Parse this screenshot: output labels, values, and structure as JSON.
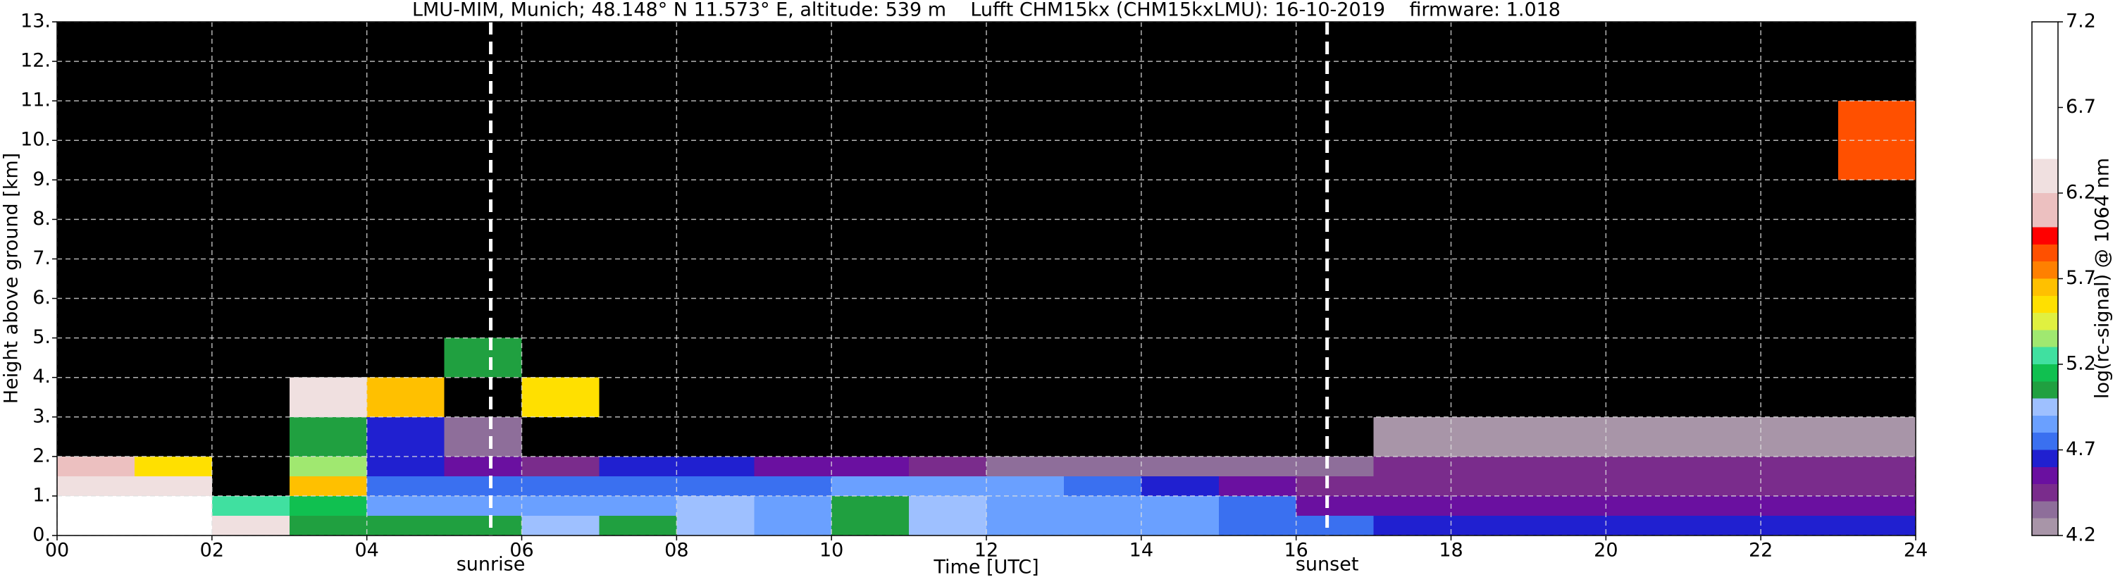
{
  "chart_data": {
    "type": "heatmap",
    "title": "LMU-MIM, Munich; 48.148° N 11.573° E, altitude: 539 m    Lufft CHM15kx (CHM15kxLMU): 16-10-2019    firmware: 1.018",
    "xlabel": "Time [UTC]",
    "ylabel": "Height above ground [km]",
    "xlim": [
      0,
      24
    ],
    "ylim": [
      0,
      13
    ],
    "xticks": [
      {
        "value": 0,
        "label": "00"
      },
      {
        "value": 2,
        "label": "02"
      },
      {
        "value": 4,
        "label": "04"
      },
      {
        "value": 6,
        "label": "06"
      },
      {
        "value": 8,
        "label": "08"
      },
      10,
      12,
      14,
      16,
      18,
      20,
      22,
      24
    ],
    "yticks": [
      {
        "value": 0,
        "label": "0."
      },
      {
        "value": 1,
        "label": "1."
      },
      {
        "value": 2,
        "label": "2."
      },
      {
        "value": 3,
        "label": "3."
      },
      {
        "value": 4,
        "label": "4."
      },
      {
        "value": 5,
        "label": "5."
      },
      {
        "value": 6,
        "label": "6."
      },
      {
        "value": 7,
        "label": "7."
      },
      {
        "value": 8,
        "label": "8."
      },
      {
        "value": 9,
        "label": "9."
      },
      {
        "value": 10,
        "label": "10."
      },
      {
        "value": 11,
        "label": "11."
      },
      {
        "value": 12,
        "label": "12."
      },
      {
        "value": 13,
        "label": "13."
      }
    ],
    "grid": true,
    "x_edges": [
      0,
      1,
      2,
      3,
      4,
      5,
      6,
      7,
      8,
      9,
      10,
      11,
      12,
      13,
      14,
      15,
      16,
      17,
      18,
      19,
      20,
      21,
      22,
      23,
      24
    ],
    "y_edges": [
      0,
      0.5,
      1,
      1.5,
      2,
      3,
      4,
      5,
      7,
      9,
      11,
      13
    ],
    "z": [
      [
        6.5,
        6.5,
        6.3,
        5.0,
        5.0,
        5.0,
        4.9,
        5.0,
        4.9,
        4.8,
        5.0,
        4.9,
        4.8,
        4.8,
        4.8,
        4.7,
        4.7,
        4.6,
        4.6,
        4.6,
        4.6,
        4.6,
        4.6,
        4.6
      ],
      [
        6.4,
        6.4,
        5.2,
        5.1,
        4.8,
        4.8,
        4.8,
        4.8,
        4.9,
        4.8,
        5.0,
        4.9,
        4.8,
        4.8,
        4.8,
        4.7,
        4.5,
        4.5,
        4.5,
        4.5,
        4.5,
        4.5,
        4.5,
        4.5
      ],
      [
        6.3,
        6.2,
        4.1,
        5.6,
        4.7,
        4.7,
        4.7,
        4.7,
        4.7,
        4.7,
        4.8,
        4.8,
        4.8,
        4.7,
        4.6,
        4.5,
        4.4,
        4.4,
        4.4,
        4.4,
        4.4,
        4.4,
        4.4,
        4.4
      ],
      [
        6.0,
        5.5,
        4.1,
        5.3,
        4.6,
        4.5,
        4.4,
        4.6,
        4.6,
        4.5,
        4.5,
        4.4,
        4.3,
        4.3,
        4.3,
        4.3,
        4.3,
        4.4,
        4.4,
        4.4,
        4.4,
        4.4,
        4.4,
        4.4
      ],
      [
        4.1,
        4.15,
        4.1,
        5.0,
        4.6,
        4.3,
        4.15,
        4.15,
        4.15,
        4.15,
        4.15,
        4.15,
        4.15,
        4.15,
        4.15,
        4.15,
        4.15,
        4.25,
        4.25,
        4.25,
        4.25,
        4.25,
        4.25,
        4.25
      ],
      [
        4.1,
        4.1,
        4.1,
        6.3,
        5.6,
        4.15,
        5.5,
        4.15,
        4.15,
        4.15,
        4.15,
        4.15,
        4.15,
        4.15,
        4.15,
        4.15,
        4.15,
        4.1,
        4.1,
        4.1,
        4.1,
        4.1,
        4.1,
        4.1
      ],
      [
        4.1,
        4.1,
        4.1,
        4.1,
        4.1,
        5.0,
        4.15,
        4.15,
        4.15,
        4.15,
        4.15,
        4.15,
        4.15,
        4.15,
        4.15,
        4.15,
        4.1,
        4.1,
        4.1,
        4.1,
        4.1,
        4.1,
        4.1,
        4.1
      ],
      [
        4.1,
        4.1,
        4.1,
        4.1,
        4.1,
        4.15,
        4.15,
        4.15,
        4.15,
        4.15,
        4.15,
        4.15,
        4.15,
        4.15,
        4.15,
        4.15,
        4.1,
        4.1,
        4.1,
        4.1,
        4.1,
        4.1,
        4.1,
        4.1
      ],
      [
        4.1,
        4.1,
        4.1,
        4.1,
        4.1,
        4.15,
        4.15,
        4.15,
        4.15,
        4.15,
        4.15,
        4.15,
        4.15,
        4.15,
        4.15,
        4.15,
        4.1,
        4.1,
        4.1,
        4.1,
        4.1,
        4.1,
        4.1,
        4.1
      ],
      [
        4.1,
        4.1,
        4.1,
        4.1,
        4.1,
        4.15,
        4.15,
        4.15,
        4.15,
        4.15,
        4.15,
        4.15,
        4.15,
        4.15,
        4.15,
        4.15,
        4.1,
        4.1,
        4.1,
        4.1,
        4.1,
        4.1,
        4.1,
        5.8
      ],
      [
        4.1,
        4.1,
        4.1,
        4.1,
        4.1,
        4.15,
        4.15,
        4.15,
        4.15,
        4.15,
        4.15,
        4.15,
        4.15,
        4.15,
        4.15,
        4.15,
        4.1,
        4.1,
        4.1,
        4.1,
        4.1,
        4.1,
        4.1,
        4.1
      ]
    ],
    "under_color": "#000000",
    "colorbar": {
      "label": "log(rc-signal) @ 1064 nm",
      "clim": [
        4.2,
        7.2
      ],
      "ticks": [
        4.2,
        4.7,
        5.2,
        5.7,
        6.2,
        6.7,
        7.2
      ],
      "bounds": [
        4.2,
        4.3,
        4.4,
        4.5,
        4.6,
        4.7,
        4.8,
        4.9,
        5.0,
        5.1,
        5.2,
        5.3,
        5.4,
        5.5,
        5.6,
        5.7,
        5.8,
        5.9,
        6.0,
        6.2,
        6.4,
        7.2
      ],
      "colors": [
        "#a895a8",
        "#8e6e9a",
        "#7a2c8c",
        "#6a10a0",
        "#2020d0",
        "#3a70f0",
        "#6aa0ff",
        "#9ec0ff",
        "#20a040",
        "#10c050",
        "#40e0a0",
        "#a0e870",
        "#e0f040",
        "#ffe000",
        "#ffc000",
        "#ff8000",
        "#ff5000",
        "#ff0000",
        "#ecc0c0",
        "#f0e0e0",
        "#ffffff"
      ]
    },
    "annotations": [
      {
        "text": "sunrise",
        "x": 5.6
      },
      {
        "text": "sunset",
        "x": 16.4
      }
    ]
  }
}
